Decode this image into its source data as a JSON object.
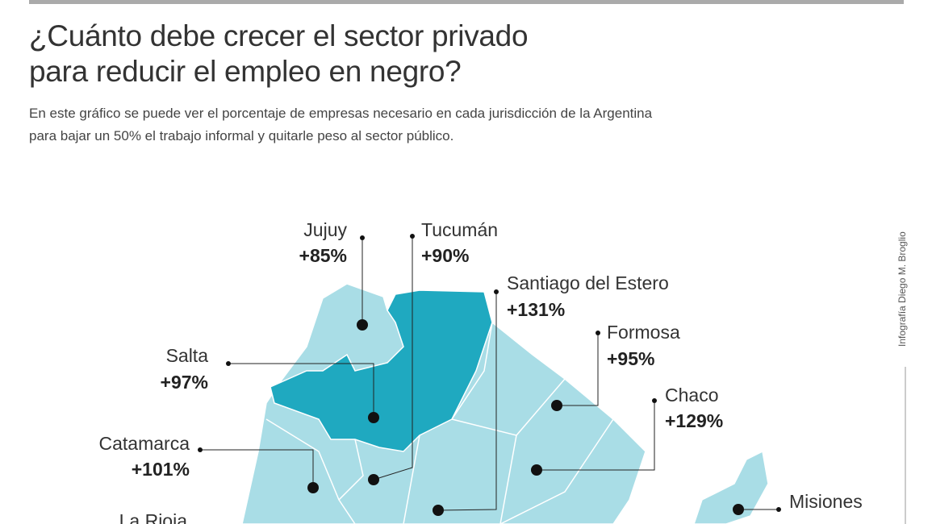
{
  "header": {
    "title_line1": "¿Cuánto debe crecer el sector privado",
    "title_line2": "para reducir el empleo en negro?",
    "subtitle_line1": "En este gráfico se puede ver el porcentaje de empresas necesario en cada jurisdicción de la Argentina",
    "subtitle_line2": "para bajar un 50% el trabajo informal y quitarle peso al sector público."
  },
  "credit": "Infografía Diego M. Broglio",
  "regions": [
    {
      "name": "Jujuy",
      "label": "+85%"
    },
    {
      "name": "Tucumán",
      "label": "+90%"
    },
    {
      "name": "Santiago del Estero",
      "label": "+131%"
    },
    {
      "name": "Formosa",
      "label": "+95%"
    },
    {
      "name": "Chaco",
      "label": "+129%"
    },
    {
      "name": "Salta",
      "label": "+97%"
    },
    {
      "name": "Catamarca",
      "label": "+101%"
    },
    {
      "name": "La Rioja"
    },
    {
      "name": "Misiones"
    }
  ]
}
